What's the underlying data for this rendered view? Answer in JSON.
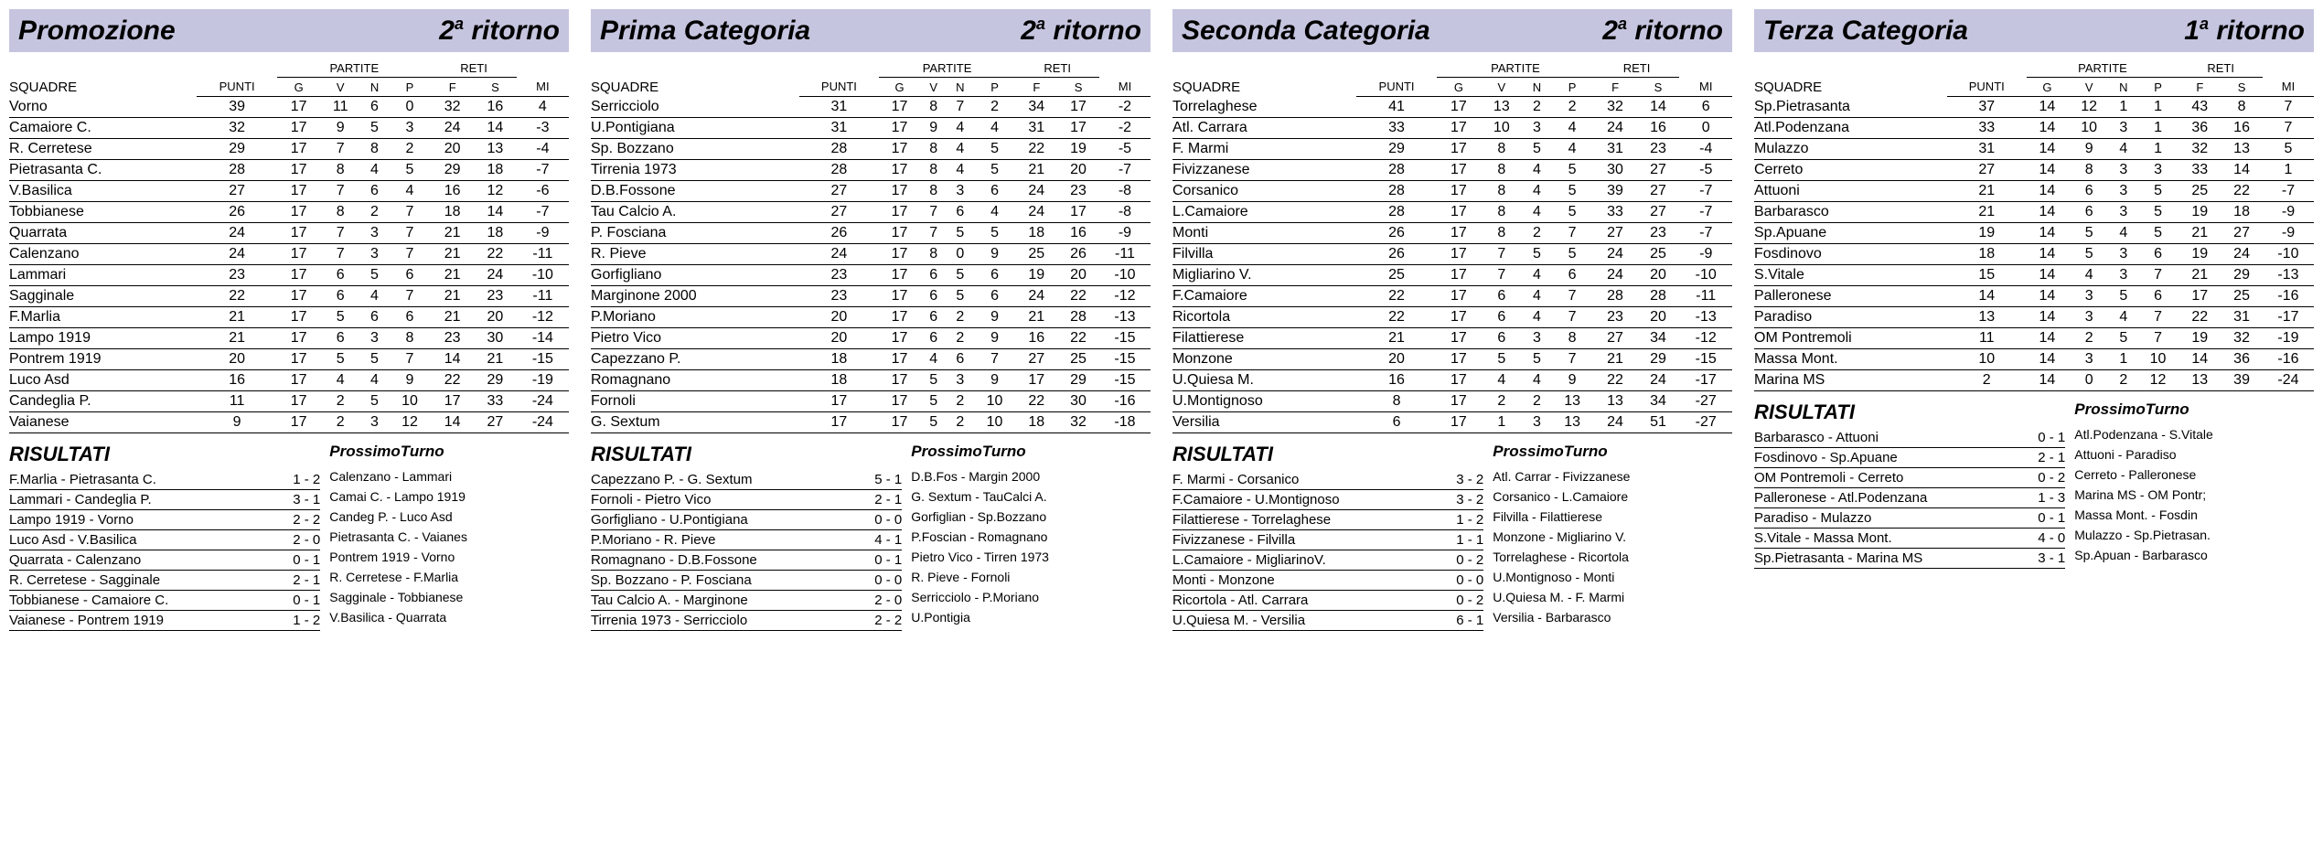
{
  "labels": {
    "squadre": "SQUADRE",
    "punti": "PUNTI",
    "partite": "PARTITE",
    "reti": "RETI",
    "g": "G",
    "v": "V",
    "n": "N",
    "p": "P",
    "f": "F",
    "s": "S",
    "mi": "MI",
    "risultati": "RISULTATI",
    "prossimo": "ProssimoTurno"
  },
  "panels": [
    {
      "title": "Promozione",
      "round_num": "2",
      "round_sup": "a",
      "round_word": " ritorno",
      "standings": [
        {
          "t": "Vorno",
          "pt": 39,
          "g": 17,
          "v": 11,
          "n": 6,
          "p": 0,
          "f": 32,
          "s": 16,
          "mi": 4
        },
        {
          "t": "Camaiore C.",
          "pt": 32,
          "g": 17,
          "v": 9,
          "n": 5,
          "p": 3,
          "f": 24,
          "s": 14,
          "mi": -3
        },
        {
          "t": "R. Cerretese",
          "pt": 29,
          "g": 17,
          "v": 7,
          "n": 8,
          "p": 2,
          "f": 20,
          "s": 13,
          "mi": -4
        },
        {
          "t": "Pietrasanta C.",
          "pt": 28,
          "g": 17,
          "v": 8,
          "n": 4,
          "p": 5,
          "f": 29,
          "s": 18,
          "mi": -7
        },
        {
          "t": "V.Basilica",
          "pt": 27,
          "g": 17,
          "v": 7,
          "n": 6,
          "p": 4,
          "f": 16,
          "s": 12,
          "mi": -6
        },
        {
          "t": "Tobbianese",
          "pt": 26,
          "g": 17,
          "v": 8,
          "n": 2,
          "p": 7,
          "f": 18,
          "s": 14,
          "mi": -7
        },
        {
          "t": "Quarrata",
          "pt": 24,
          "g": 17,
          "v": 7,
          "n": 3,
          "p": 7,
          "f": 21,
          "s": 18,
          "mi": -9
        },
        {
          "t": "Calenzano",
          "pt": 24,
          "g": 17,
          "v": 7,
          "n": 3,
          "p": 7,
          "f": 21,
          "s": 22,
          "mi": -11
        },
        {
          "t": "Lammari",
          "pt": 23,
          "g": 17,
          "v": 6,
          "n": 5,
          "p": 6,
          "f": 21,
          "s": 24,
          "mi": -10
        },
        {
          "t": "Sagginale",
          "pt": 22,
          "g": 17,
          "v": 6,
          "n": 4,
          "p": 7,
          "f": 21,
          "s": 23,
          "mi": -11
        },
        {
          "t": "F.Marlia",
          "pt": 21,
          "g": 17,
          "v": 5,
          "n": 6,
          "p": 6,
          "f": 21,
          "s": 20,
          "mi": -12
        },
        {
          "t": "Lampo 1919",
          "pt": 21,
          "g": 17,
          "v": 6,
          "n": 3,
          "p": 8,
          "f": 23,
          "s": 30,
          "mi": -14
        },
        {
          "t": "Pontrem 1919",
          "pt": 20,
          "g": 17,
          "v": 5,
          "n": 5,
          "p": 7,
          "f": 14,
          "s": 21,
          "mi": -15
        },
        {
          "t": "Luco Asd",
          "pt": 16,
          "g": 17,
          "v": 4,
          "n": 4,
          "p": 9,
          "f": 22,
          "s": 29,
          "mi": -19
        },
        {
          "t": "Candeglia P.",
          "pt": 11,
          "g": 17,
          "v": 2,
          "n": 5,
          "p": 10,
          "f": 17,
          "s": 33,
          "mi": -24
        },
        {
          "t": "Vaianese",
          "pt": 9,
          "g": 17,
          "v": 2,
          "n": 3,
          "p": 12,
          "f": 14,
          "s": 27,
          "mi": -24
        }
      ],
      "risultati": [
        {
          "m": "F.Marlia - Pietrasanta C.",
          "r": "1 - 2"
        },
        {
          "m": "Lammari - Candeglia P.",
          "r": "3 - 1"
        },
        {
          "m": "Lampo 1919 - Vorno",
          "r": "2 - 2"
        },
        {
          "m": "Luco Asd - V.Basilica",
          "r": "2 - 0"
        },
        {
          "m": "Quarrata - Calenzano",
          "r": "0 - 1"
        },
        {
          "m": "R. Cerretese - Sagginale",
          "r": "2 - 1"
        },
        {
          "m": "Tobbianese - Camaiore C.",
          "r": "0 - 1"
        },
        {
          "m": "Vaianese - Pontrem 1919",
          "r": "1 - 2"
        }
      ],
      "prossimo": [
        "Calenzano - Lammari",
        "Camai C. - Lampo 1919",
        "Candeg P. - Luco Asd",
        "Pietrasanta C. - Vaianes",
        "Pontrem 1919 - Vorno",
        "R. Cerretese - F.Marlia",
        "Sagginale - Tobbianese",
        "V.Basilica - Quarrata"
      ]
    },
    {
      "title": "Prima Categoria",
      "round_num": "2",
      "round_sup": "a",
      "round_word": " ritorno",
      "standings": [
        {
          "t": "Serricciolo",
          "pt": 31,
          "g": 17,
          "v": 8,
          "n": 7,
          "p": 2,
          "f": 34,
          "s": 17,
          "mi": -2
        },
        {
          "t": "U.Pontigiana",
          "pt": 31,
          "g": 17,
          "v": 9,
          "n": 4,
          "p": 4,
          "f": 31,
          "s": 17,
          "mi": -2
        },
        {
          "t": "Sp. Bozzano",
          "pt": 28,
          "g": 17,
          "v": 8,
          "n": 4,
          "p": 5,
          "f": 22,
          "s": 19,
          "mi": -5
        },
        {
          "t": "Tirrenia 1973",
          "pt": 28,
          "g": 17,
          "v": 8,
          "n": 4,
          "p": 5,
          "f": 21,
          "s": 20,
          "mi": -7
        },
        {
          "t": "D.B.Fossone",
          "pt": 27,
          "g": 17,
          "v": 8,
          "n": 3,
          "p": 6,
          "f": 24,
          "s": 23,
          "mi": -8
        },
        {
          "t": "Tau Calcio A.",
          "pt": 27,
          "g": 17,
          "v": 7,
          "n": 6,
          "p": 4,
          "f": 24,
          "s": 17,
          "mi": -8
        },
        {
          "t": "P. Fosciana",
          "pt": 26,
          "g": 17,
          "v": 7,
          "n": 5,
          "p": 5,
          "f": 18,
          "s": 16,
          "mi": -9
        },
        {
          "t": "R. Pieve",
          "pt": 24,
          "g": 17,
          "v": 8,
          "n": 0,
          "p": 9,
          "f": 25,
          "s": 26,
          "mi": -11
        },
        {
          "t": "Gorfigliano",
          "pt": 23,
          "g": 17,
          "v": 6,
          "n": 5,
          "p": 6,
          "f": 19,
          "s": 20,
          "mi": -10
        },
        {
          "t": "Marginone 2000",
          "pt": 23,
          "g": 17,
          "v": 6,
          "n": 5,
          "p": 6,
          "f": 24,
          "s": 22,
          "mi": -12
        },
        {
          "t": "P.Moriano",
          "pt": 20,
          "g": 17,
          "v": 6,
          "n": 2,
          "p": 9,
          "f": 21,
          "s": 28,
          "mi": -13
        },
        {
          "t": "Pietro Vico",
          "pt": 20,
          "g": 17,
          "v": 6,
          "n": 2,
          "p": 9,
          "f": 16,
          "s": 22,
          "mi": -15
        },
        {
          "t": "Capezzano P.",
          "pt": 18,
          "g": 17,
          "v": 4,
          "n": 6,
          "p": 7,
          "f": 27,
          "s": 25,
          "mi": -15
        },
        {
          "t": "Romagnano",
          "pt": 18,
          "g": 17,
          "v": 5,
          "n": 3,
          "p": 9,
          "f": 17,
          "s": 29,
          "mi": -15
        },
        {
          "t": "Fornoli",
          "pt": 17,
          "g": 17,
          "v": 5,
          "n": 2,
          "p": 10,
          "f": 22,
          "s": 30,
          "mi": -16
        },
        {
          "t": "G. Sextum",
          "pt": 17,
          "g": 17,
          "v": 5,
          "n": 2,
          "p": 10,
          "f": 18,
          "s": 32,
          "mi": -18
        }
      ],
      "risultati": [
        {
          "m": "Capezzano P. - G. Sextum",
          "r": "5 - 1"
        },
        {
          "m": "Fornoli - Pietro Vico",
          "r": "2 - 1"
        },
        {
          "m": "Gorfigliano - U.Pontigiana",
          "r": "0 - 0"
        },
        {
          "m": "P.Moriano - R. Pieve",
          "r": "4 - 1"
        },
        {
          "m": "Romagnano - D.B.Fossone",
          "r": "0 - 1"
        },
        {
          "m": "Sp. Bozzano - P. Fosciana",
          "r": "0 - 0"
        },
        {
          "m": "Tau Calcio A. - Marginone",
          "r": "2 - 0"
        },
        {
          "m": "Tirrenia 1973 - Serricciolo",
          "r": "2 - 2"
        }
      ],
      "prossimo": [
        "D.B.Fos - Margin 2000",
        "G. Sextum - TauCalci A.",
        "Gorfiglian - Sp.Bozzano",
        "P.Foscian - Romagnano",
        "Pietro Vico - Tirren 1973",
        "R. Pieve - Fornoli",
        "Serricciolo - P.Moriano",
        "U.Pontigia"
      ]
    },
    {
      "title": "Seconda Categoria",
      "round_num": "2",
      "round_sup": "a",
      "round_word": " ritorno",
      "standings": [
        {
          "t": "Torrelaghese",
          "pt": 41,
          "g": 17,
          "v": 13,
          "n": 2,
          "p": 2,
          "f": 32,
          "s": 14,
          "mi": 6
        },
        {
          "t": "Atl. Carrara",
          "pt": 33,
          "g": 17,
          "v": 10,
          "n": 3,
          "p": 4,
          "f": 24,
          "s": 16,
          "mi": 0
        },
        {
          "t": "F. Marmi",
          "pt": 29,
          "g": 17,
          "v": 8,
          "n": 5,
          "p": 4,
          "f": 31,
          "s": 23,
          "mi": -4
        },
        {
          "t": "Fivizzanese",
          "pt": 28,
          "g": 17,
          "v": 8,
          "n": 4,
          "p": 5,
          "f": 30,
          "s": 27,
          "mi": -5
        },
        {
          "t": "Corsanico",
          "pt": 28,
          "g": 17,
          "v": 8,
          "n": 4,
          "p": 5,
          "f": 39,
          "s": 27,
          "mi": -7
        },
        {
          "t": "L.Camaiore",
          "pt": 28,
          "g": 17,
          "v": 8,
          "n": 4,
          "p": 5,
          "f": 33,
          "s": 27,
          "mi": -7
        },
        {
          "t": "Monti",
          "pt": 26,
          "g": 17,
          "v": 8,
          "n": 2,
          "p": 7,
          "f": 27,
          "s": 23,
          "mi": -7
        },
        {
          "t": "Filvilla",
          "pt": 26,
          "g": 17,
          "v": 7,
          "n": 5,
          "p": 5,
          "f": 24,
          "s": 25,
          "mi": -9
        },
        {
          "t": "Migliarino V.",
          "pt": 25,
          "g": 17,
          "v": 7,
          "n": 4,
          "p": 6,
          "f": 24,
          "s": 20,
          "mi": -10
        },
        {
          "t": "F.Camaiore",
          "pt": 22,
          "g": 17,
          "v": 6,
          "n": 4,
          "p": 7,
          "f": 28,
          "s": 28,
          "mi": -11
        },
        {
          "t": "Ricortola",
          "pt": 22,
          "g": 17,
          "v": 6,
          "n": 4,
          "p": 7,
          "f": 23,
          "s": 20,
          "mi": -13
        },
        {
          "t": "Filattierese",
          "pt": 21,
          "g": 17,
          "v": 6,
          "n": 3,
          "p": 8,
          "f": 27,
          "s": 34,
          "mi": -12
        },
        {
          "t": "Monzone",
          "pt": 20,
          "g": 17,
          "v": 5,
          "n": 5,
          "p": 7,
          "f": 21,
          "s": 29,
          "mi": -15
        },
        {
          "t": "U.Quiesa M.",
          "pt": 16,
          "g": 17,
          "v": 4,
          "n": 4,
          "p": 9,
          "f": 22,
          "s": 24,
          "mi": -17
        },
        {
          "t": "U.Montignoso",
          "pt": 8,
          "g": 17,
          "v": 2,
          "n": 2,
          "p": 13,
          "f": 13,
          "s": 34,
          "mi": -27
        },
        {
          "t": "Versilia",
          "pt": 6,
          "g": 17,
          "v": 1,
          "n": 3,
          "p": 13,
          "f": 24,
          "s": 51,
          "mi": -27
        }
      ],
      "risultati": [
        {
          "m": "F. Marmi - Corsanico",
          "r": "3 - 2"
        },
        {
          "m": "F.Camaiore - U.Montignoso",
          "r": "3 - 2"
        },
        {
          "m": "Filattierese - Torrelaghese",
          "r": "1 - 2"
        },
        {
          "m": "Fivizzanese - Filvilla",
          "r": "1 - 1"
        },
        {
          "m": "L.Camaiore - MigliarinoV.",
          "r": "0 - 2"
        },
        {
          "m": "Monti - Monzone",
          "r": "0 - 0"
        },
        {
          "m": "Ricortola - Atl. Carrara",
          "r": "0 - 2"
        },
        {
          "m": "U.Quiesa M. - Versilia",
          "r": "6 - 1"
        }
      ],
      "prossimo": [
        "Atl. Carrar - Fivizzanese",
        "Corsanico - L.Camaiore",
        "Filvilla - Filattierese",
        "Monzone - Migliarino V.",
        "Torrelaghese - Ricortola",
        "U.Montignoso - Monti",
        "U.Quiesa M. - F. Marmi",
        "Versilia - Barbarasco"
      ]
    },
    {
      "title": "Terza Categoria",
      "round_num": "1",
      "round_sup": "a",
      "round_word": " ritorno",
      "standings": [
        {
          "t": "Sp.Pietrasanta",
          "pt": 37,
          "g": 14,
          "v": 12,
          "n": 1,
          "p": 1,
          "f": 43,
          "s": 8,
          "mi": 7
        },
        {
          "t": "Atl.Podenzana",
          "pt": 33,
          "g": 14,
          "v": 10,
          "n": 3,
          "p": 1,
          "f": 36,
          "s": 16,
          "mi": 7
        },
        {
          "t": "Mulazzo",
          "pt": 31,
          "g": 14,
          "v": 9,
          "n": 4,
          "p": 1,
          "f": 32,
          "s": 13,
          "mi": 5
        },
        {
          "t": "Cerreto",
          "pt": 27,
          "g": 14,
          "v": 8,
          "n": 3,
          "p": 3,
          "f": 33,
          "s": 14,
          "mi": 1
        },
        {
          "t": "Attuoni",
          "pt": 21,
          "g": 14,
          "v": 6,
          "n": 3,
          "p": 5,
          "f": 25,
          "s": 22,
          "mi": -7
        },
        {
          "t": "Barbarasco",
          "pt": 21,
          "g": 14,
          "v": 6,
          "n": 3,
          "p": 5,
          "f": 19,
          "s": 18,
          "mi": -9
        },
        {
          "t": "Sp.Apuane",
          "pt": 19,
          "g": 14,
          "v": 5,
          "n": 4,
          "p": 5,
          "f": 21,
          "s": 27,
          "mi": -9
        },
        {
          "t": "Fosdinovo",
          "pt": 18,
          "g": 14,
          "v": 5,
          "n": 3,
          "p": 6,
          "f": 19,
          "s": 24,
          "mi": -10
        },
        {
          "t": "S.Vitale",
          "pt": 15,
          "g": 14,
          "v": 4,
          "n": 3,
          "p": 7,
          "f": 21,
          "s": 29,
          "mi": -13
        },
        {
          "t": "Palleronese",
          "pt": 14,
          "g": 14,
          "v": 3,
          "n": 5,
          "p": 6,
          "f": 17,
          "s": 25,
          "mi": -16
        },
        {
          "t": "Paradiso",
          "pt": 13,
          "g": 14,
          "v": 3,
          "n": 4,
          "p": 7,
          "f": 22,
          "s": 31,
          "mi": -17
        },
        {
          "t": "OM Pontremoli",
          "pt": 11,
          "g": 14,
          "v": 2,
          "n": 5,
          "p": 7,
          "f": 19,
          "s": 32,
          "mi": -19
        },
        {
          "t": "Massa Mont.",
          "pt": 10,
          "g": 14,
          "v": 3,
          "n": 1,
          "p": 10,
          "f": 14,
          "s": 36,
          "mi": -16
        },
        {
          "t": "Marina MS",
          "pt": 2,
          "g": 14,
          "v": 0,
          "n": 2,
          "p": 12,
          "f": 13,
          "s": 39,
          "mi": -24
        }
      ],
      "risultati": [
        {
          "m": "Barbarasco - Attuoni",
          "r": "0 - 1"
        },
        {
          "m": "Fosdinovo - Sp.Apuane",
          "r": "2 - 1"
        },
        {
          "m": "OM Pontremoli - Cerreto",
          "r": "0 - 2"
        },
        {
          "m": "Palleronese - Atl.Podenzana",
          "r": "1 - 3"
        },
        {
          "m": "Paradiso - Mulazzo",
          "r": "0 - 1"
        },
        {
          "m": "S.Vitale - Massa Mont.",
          "r": "4 - 0"
        },
        {
          "m": "Sp.Pietrasanta - Marina MS",
          "r": "3 - 1"
        }
      ],
      "prossimo": [
        "Atl.Podenzana - S.Vitale",
        "Attuoni - Paradiso",
        "Cerreto - Palleronese",
        "Marina MS - OM Pontr;",
        "Massa Mont. - Fosdin",
        "Mulazzo - Sp.Pietrasan.",
        "Sp.Apuan - Barbarasco"
      ]
    }
  ]
}
